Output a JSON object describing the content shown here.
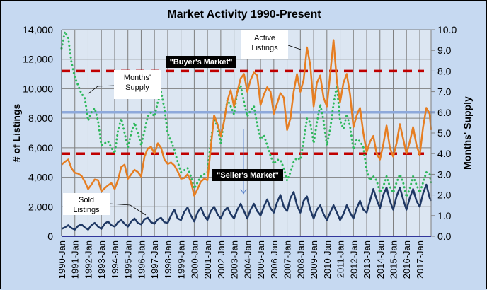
{
  "chart_data": {
    "type": "line",
    "title": "Market Activity  1990-Present",
    "xlabel": "",
    "ylabel": "# of Listings",
    "y2label": "Months' Supply",
    "ylim": [
      0,
      14000
    ],
    "y2lim": [
      0,
      10
    ],
    "xlim": [
      1990.0,
      2017.85
    ],
    "grid": true,
    "legend": "none (callout labels)",
    "yticks": [
      "0",
      "2,000",
      "4,000",
      "6,000",
      "8,000",
      "10,000",
      "12,000",
      "14,000"
    ],
    "y2ticks": [
      "0.0",
      "1.0",
      "2.0",
      "3.0",
      "4.0",
      "5.0",
      "6.0",
      "7.0",
      "8.0",
      "9.0",
      "10.0"
    ],
    "xticks": [
      "1990-Jan",
      "1991-Jan",
      "1992-Jan",
      "1993-Jan",
      "1994-Jan",
      "1995-Jan",
      "1996-Jan",
      "1997-Jan",
      "1998-Jan",
      "1999-Jan",
      "2000-Jan",
      "2001-Jan",
      "2002-Jan",
      "2003-Jan",
      "2004-Jan",
      "2005-Jan",
      "2006-Jan",
      "2007-Jan",
      "2008-Jan",
      "2009-Jan",
      "2010-Jan",
      "2011-Jan",
      "2012-Jan",
      "2013-Jan",
      "2014-Jan",
      "2015-Jan",
      "2016-Jan",
      "2017-Jan"
    ],
    "series": [
      {
        "name": "Active Listings",
        "axis": "left",
        "color": "#e67e22",
        "style": "solid",
        "x": [
          1990.0,
          1990.25,
          1990.5,
          1990.75,
          1991.0,
          1991.25,
          1991.5,
          1991.75,
          1992.0,
          1992.25,
          1992.5,
          1992.75,
          1993.0,
          1993.25,
          1993.5,
          1993.75,
          1994.0,
          1994.25,
          1994.5,
          1994.75,
          1995.0,
          1995.25,
          1995.5,
          1995.75,
          1996.0,
          1996.25,
          1996.5,
          1996.75,
          1997.0,
          1997.25,
          1997.5,
          1997.75,
          1998.0,
          1998.25,
          1998.5,
          1998.75,
          1999.0,
          1999.25,
          1999.5,
          1999.75,
          2000.0,
          2000.25,
          2000.5,
          2000.75,
          2001.0,
          2001.25,
          2001.5,
          2001.75,
          2002.0,
          2002.25,
          2002.5,
          2002.75,
          2003.0,
          2003.25,
          2003.5,
          2003.75,
          2004.0,
          2004.25,
          2004.5,
          2004.75,
          2005.0,
          2005.25,
          2005.5,
          2005.75,
          2006.0,
          2006.25,
          2006.5,
          2006.75,
          2007.0,
          2007.25,
          2007.5,
          2007.75,
          2008.0,
          2008.25,
          2008.5,
          2008.75,
          2009.0,
          2009.25,
          2009.5,
          2009.75,
          2010.0,
          2010.25,
          2010.5,
          2010.75,
          2011.0,
          2011.25,
          2011.5,
          2011.75,
          2012.0,
          2012.25,
          2012.5,
          2012.75,
          2013.0,
          2013.25,
          2013.5,
          2013.75,
          2014.0,
          2014.25,
          2014.5,
          2014.75,
          2015.0,
          2015.25,
          2015.5,
          2015.75,
          2016.0,
          2016.25,
          2016.5,
          2016.75,
          2017.0,
          2017.25,
          2017.5,
          2017.75,
          2017.85
        ],
        "values": [
          4850,
          5050,
          5200,
          4600,
          4300,
          4250,
          4100,
          3700,
          3200,
          3500,
          3850,
          3800,
          3050,
          3250,
          3450,
          3600,
          3200,
          3800,
          4700,
          4850,
          3900,
          4200,
          4500,
          4350,
          4050,
          5400,
          5950,
          6050,
          5600,
          6300,
          6000,
          5200,
          4900,
          5000,
          4800,
          4400,
          3900,
          3950,
          4200,
          3700,
          2750,
          3200,
          3700,
          3900,
          3800,
          6000,
          8200,
          7600,
          6800,
          7800,
          9200,
          9900,
          8800,
          9800,
          10700,
          11000,
          9800,
          10600,
          11100,
          10900,
          8900,
          9600,
          10100,
          9800,
          8300,
          9000,
          9700,
          9400,
          7200,
          8000,
          9800,
          11000,
          9800,
          10600,
          12800,
          11600,
          8800,
          10400,
          10900,
          9400,
          8800,
          11000,
          13300,
          10500,
          9100,
          10400,
          11000,
          9600,
          7400,
          8200,
          8700,
          7000,
          5700,
          6400,
          6800,
          5600,
          5200,
          6200,
          7500,
          6000,
          5400,
          6300,
          7600,
          6600,
          5600,
          6400,
          7400,
          6200,
          5500,
          7400,
          8700,
          8300,
          7200
        ]
      },
      {
        "name": "Sold Listings",
        "axis": "left",
        "color": "#1f3864",
        "style": "solid",
        "x": [
          1990.0,
          1990.25,
          1990.5,
          1990.75,
          1991.0,
          1991.25,
          1991.5,
          1991.75,
          1992.0,
          1992.25,
          1992.5,
          1992.75,
          1993.0,
          1993.25,
          1993.5,
          1993.75,
          1994.0,
          1994.25,
          1994.5,
          1994.75,
          1995.0,
          1995.25,
          1995.5,
          1995.75,
          1996.0,
          1996.25,
          1996.5,
          1996.75,
          1997.0,
          1997.25,
          1997.5,
          1997.75,
          1998.0,
          1998.25,
          1998.5,
          1998.75,
          1999.0,
          1999.25,
          1999.5,
          1999.75,
          2000.0,
          2000.25,
          2000.5,
          2000.75,
          2001.0,
          2001.25,
          2001.5,
          2001.75,
          2002.0,
          2002.25,
          2002.5,
          2002.75,
          2003.0,
          2003.25,
          2003.5,
          2003.75,
          2004.0,
          2004.25,
          2004.5,
          2004.75,
          2005.0,
          2005.25,
          2005.5,
          2005.75,
          2006.0,
          2006.25,
          2006.5,
          2006.75,
          2007.0,
          2007.25,
          2007.5,
          2007.75,
          2008.0,
          2008.25,
          2008.5,
          2008.75,
          2009.0,
          2009.25,
          2009.5,
          2009.75,
          2010.0,
          2010.25,
          2010.5,
          2010.75,
          2011.0,
          2011.25,
          2011.5,
          2011.75,
          2012.0,
          2012.25,
          2012.5,
          2012.75,
          2013.0,
          2013.25,
          2013.5,
          2013.75,
          2014.0,
          2014.25,
          2014.5,
          2014.75,
          2015.0,
          2015.25,
          2015.5,
          2015.75,
          2016.0,
          2016.25,
          2016.5,
          2016.75,
          2017.0,
          2017.25,
          2017.5,
          2017.75,
          2017.85
        ],
        "values": [
          500,
          600,
          750,
          550,
          450,
          700,
          800,
          600,
          450,
          750,
          900,
          650,
          500,
          850,
          1000,
          750,
          650,
          950,
          1100,
          850,
          650,
          1000,
          1200,
          900,
          800,
          1150,
          1250,
          950,
          850,
          1150,
          1250,
          950,
          900,
          1400,
          1800,
          1200,
          1100,
          1650,
          1950,
          1400,
          1000,
          1600,
          1950,
          1400,
          1100,
          1700,
          2000,
          1500,
          1200,
          1700,
          1950,
          1500,
          1200,
          1800,
          2200,
          1700,
          1200,
          1800,
          2200,
          1700,
          1400,
          2000,
          2500,
          1900,
          1600,
          2300,
          2800,
          2000,
          1700,
          2600,
          3000,
          2100,
          1600,
          2400,
          2700,
          1800,
          1200,
          1800,
          2100,
          1500,
          1100,
          1600,
          2100,
          1600,
          1100,
          1500,
          2100,
          1600,
          1200,
          1900,
          2400,
          1800,
          1600,
          2400,
          3200,
          2500,
          1900,
          2800,
          3300,
          2400,
          1800,
          2700,
          3300,
          2500,
          1800,
          2600,
          3200,
          2400,
          2000,
          2900,
          3500,
          2600,
          2400
        ]
      },
      {
        "name": "Months' Supply",
        "axis": "right",
        "color": "#2eb85c",
        "style": "dotted",
        "x": [
          1990.0,
          1990.25,
          1990.5,
          1990.75,
          1991.0,
          1991.25,
          1991.5,
          1991.75,
          1992.0,
          1992.25,
          1992.5,
          1992.75,
          1993.0,
          1993.25,
          1993.5,
          1993.75,
          1994.0,
          1994.25,
          1994.5,
          1994.75,
          1995.0,
          1995.25,
          1995.5,
          1995.75,
          1996.0,
          1996.25,
          1996.5,
          1996.75,
          1997.0,
          1997.25,
          1997.5,
          1997.75,
          1998.0,
          1998.25,
          1998.5,
          1998.75,
          1999.0,
          1999.25,
          1999.5,
          1999.75,
          2000.0,
          2000.25,
          2000.5,
          2000.75,
          2001.0,
          2001.25,
          2001.5,
          2001.75,
          2002.0,
          2002.25,
          2002.5,
          2002.75,
          2003.0,
          2003.25,
          2003.5,
          2003.75,
          2004.0,
          2004.25,
          2004.5,
          2004.75,
          2005.0,
          2005.25,
          2005.5,
          2005.75,
          2006.0,
          2006.25,
          2006.5,
          2006.75,
          2007.0,
          2007.25,
          2007.5,
          2007.75,
          2008.0,
          2008.25,
          2008.5,
          2008.75,
          2009.0,
          2009.25,
          2009.5,
          2009.75,
          2010.0,
          2010.25,
          2010.5,
          2010.75,
          2011.0,
          2011.25,
          2011.5,
          2011.75,
          2012.0,
          2012.25,
          2012.5,
          2012.75,
          2013.0,
          2013.25,
          2013.5,
          2013.75,
          2014.0,
          2014.25,
          2014.5,
          2014.75,
          2015.0,
          2015.25,
          2015.5,
          2015.75,
          2016.0,
          2016.25,
          2016.5,
          2016.75,
          2017.0,
          2017.25,
          2017.5,
          2017.75,
          2017.85
        ],
        "values": [
          9.1,
          9.9,
          9.6,
          8.4,
          7.7,
          7.3,
          6.9,
          6.7,
          5.6,
          6.0,
          6.2,
          5.6,
          4.4,
          4.5,
          4.6,
          4.3,
          4.0,
          5.1,
          5.7,
          5.0,
          4.3,
          5.0,
          5.5,
          5.0,
          4.4,
          5.1,
          5.8,
          6.0,
          5.8,
          6.5,
          7.0,
          6.2,
          5.0,
          4.6,
          4.2,
          3.6,
          3.1,
          3.2,
          3.3,
          2.9,
          2.3,
          2.6,
          2.9,
          3.0,
          3.1,
          4.6,
          5.7,
          5.3,
          4.5,
          5.6,
          6.6,
          6.3,
          5.9,
          7.0,
          7.3,
          6.5,
          5.8,
          6.1,
          6.3,
          5.4,
          4.7,
          4.9,
          4.4,
          3.9,
          3.5,
          3.7,
          3.7,
          3.3,
          2.7,
          3.1,
          3.6,
          3.8,
          3.7,
          4.6,
          5.7,
          5.5,
          4.5,
          5.5,
          6.4,
          5.6,
          4.4,
          5.2,
          6.4,
          7.3,
          5.6,
          5.2,
          5.9,
          5.3,
          4.2,
          4.7,
          4.6,
          4.3,
          3.2,
          2.7,
          2.9,
          2.7,
          2.1,
          2.4,
          2.9,
          2.4,
          2.1,
          2.6,
          3.0,
          2.6,
          1.9,
          2.3,
          2.9,
          2.5,
          2.1,
          2.6,
          3.1,
          3.0,
          2.6
        ]
      }
    ],
    "reference_lines": [
      {
        "axis": "right",
        "value": 8.0,
        "color": "#c00000",
        "style": "dashed",
        "label": "\"Buyer's Market\""
      },
      {
        "axis": "right",
        "value": 4.0,
        "color": "#c00000",
        "style": "dashed",
        "label": "\"Seller's Market\""
      },
      {
        "axis": "right",
        "value": 6.0,
        "color": "#8ea9db",
        "style": "solid",
        "label": ""
      }
    ],
    "annotations": [
      {
        "text_lines": [
          "Months'",
          "Supply"
        ],
        "points_to": "Months' Supply"
      },
      {
        "text_lines": [
          "Active",
          "Listings"
        ],
        "points_to": "Active Listings"
      },
      {
        "text_lines": [
          "Sold",
          "Listings"
        ],
        "points_to": "Sold Listings"
      },
      {
        "text_lines": [
          "\"Buyer's Market\""
        ],
        "style": "black-box"
      },
      {
        "text_lines": [
          "\"Seller's Market\""
        ],
        "style": "black-box"
      }
    ]
  }
}
